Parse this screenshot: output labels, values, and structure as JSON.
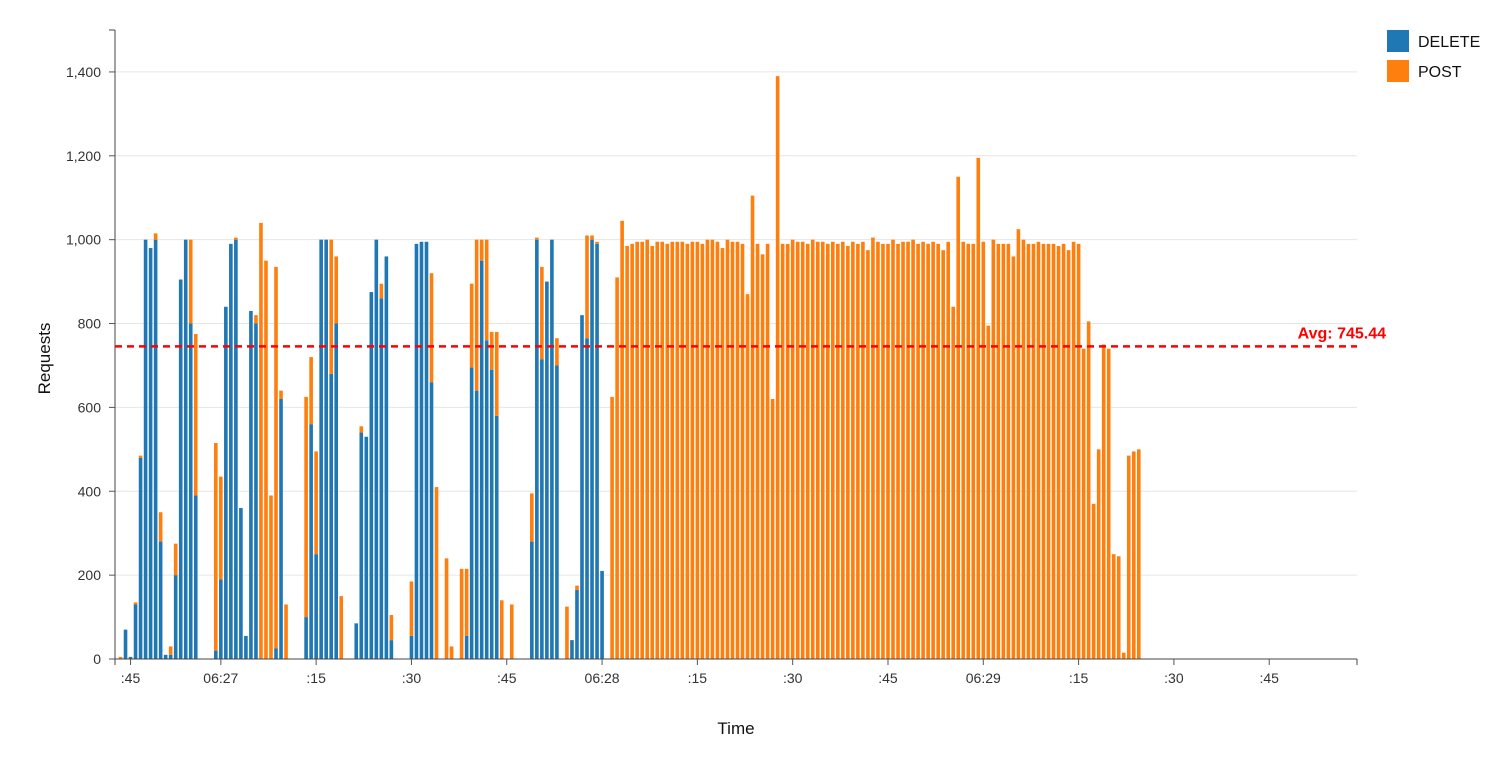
{
  "chart_data": {
    "type": "bar",
    "stacked": true,
    "xlabel": "Time",
    "ylabel": "Requests",
    "ylim": [
      0,
      1500
    ],
    "y_ticks": [
      0,
      200,
      400,
      600,
      800,
      1000,
      1200,
      1400
    ],
    "y_tick_labels": [
      "0",
      "200",
      "400",
      "600",
      "800",
      "1,000",
      "1,200",
      "1,400"
    ],
    "x_tick_labels": [
      ":45",
      "06:27",
      ":15",
      ":30",
      ":45",
      "06:28",
      ":15",
      ":30",
      ":45",
      "06:29",
      ":15",
      ":30",
      ":45"
    ],
    "x_tick_positions": [
      2,
      20,
      39,
      58,
      77,
      96,
      115,
      134,
      153,
      172,
      191,
      210,
      229
    ],
    "grid": "horizontal",
    "legend_position": "top-right",
    "colors": {
      "DELETE": "#1f77b4",
      "POST": "#ff7f0e",
      "average": "#ff0000"
    },
    "average": {
      "value": 745.44,
      "label": "Avg: 745.44"
    },
    "series": [
      {
        "name": "DELETE",
        "values": [
          0,
          70,
          5,
          130,
          480,
          1000,
          980,
          1000,
          280,
          10,
          10,
          200,
          905,
          1000,
          800,
          390,
          0,
          0,
          0,
          20,
          190,
          840,
          990,
          1000,
          360,
          55,
          830,
          800,
          0,
          0,
          0,
          25,
          620,
          0,
          0,
          0,
          0,
          100,
          560,
          250,
          1000,
          1000,
          680,
          800,
          0,
          0,
          0,
          85,
          540,
          530,
          875,
          1000,
          860,
          960,
          45,
          0,
          0,
          0,
          55,
          990,
          995,
          995,
          660,
          0,
          0,
          0,
          0,
          0,
          0,
          55,
          695,
          640,
          950,
          760,
          690,
          580,
          0,
          0,
          0,
          0,
          0,
          0,
          280,
          1000,
          715,
          900,
          1000,
          700,
          0,
          0,
          45,
          165,
          820,
          765,
          1000,
          990,
          210,
          0,
          0,
          0,
          0,
          0,
          0,
          0,
          0,
          0,
          0,
          0,
          0,
          0,
          0,
          0,
          0,
          0,
          0,
          0,
          0,
          0,
          0,
          0,
          0,
          0,
          0,
          0,
          0,
          0,
          0,
          0,
          0,
          0,
          0,
          0,
          0,
          0,
          0,
          0,
          0,
          0,
          0,
          0,
          0,
          0,
          0,
          0,
          0,
          0,
          0,
          0,
          0,
          0,
          0,
          0,
          0,
          0,
          0,
          0,
          0,
          0,
          0,
          0,
          0,
          0,
          0,
          0,
          0,
          0,
          0,
          0,
          0,
          0,
          0,
          0,
          0,
          0,
          0,
          0,
          0,
          0,
          0,
          0,
          0,
          0,
          0,
          0,
          0,
          0,
          0,
          0,
          0,
          0,
          0,
          0,
          0,
          0,
          0,
          0,
          0,
          0,
          0,
          0,
          0,
          0,
          0,
          0,
          0,
          0,
          0,
          0,
          0,
          0,
          0,
          0,
          0,
          0,
          0,
          0,
          0,
          0,
          0,
          0,
          0,
          0,
          0,
          0,
          0,
          0,
          0,
          0,
          0,
          0,
          0,
          0,
          0,
          0,
          0,
          0,
          0,
          0,
          0,
          0,
          0,
          0,
          0,
          0,
          0,
          0,
          0
        ]
      },
      {
        "name": "POST",
        "values": [
          5,
          0,
          0,
          5,
          5,
          0,
          0,
          15,
          70,
          0,
          20,
          75,
          0,
          0,
          200,
          385,
          0,
          0,
          0,
          495,
          245,
          0,
          0,
          5,
          0,
          0,
          0,
          20,
          1040,
          950,
          390,
          910,
          20,
          130,
          0,
          0,
          0,
          525,
          160,
          245,
          0,
          0,
          320,
          160,
          150,
          0,
          0,
          0,
          15,
          0,
          0,
          0,
          35,
          0,
          60,
          0,
          0,
          0,
          130,
          0,
          0,
          0,
          260,
          410,
          0,
          240,
          30,
          0,
          215,
          160,
          200,
          360,
          50,
          240,
          90,
          200,
          140,
          0,
          130,
          0,
          0,
          0,
          115,
          5,
          220,
          0,
          0,
          65,
          0,
          125,
          0,
          10,
          0,
          245,
          10,
          5,
          0,
          0,
          625,
          910,
          1045,
          985,
          990,
          995,
          995,
          1000,
          985,
          995,
          995,
          990,
          995,
          995,
          995,
          990,
          995,
          995,
          990,
          1000,
          1000,
          995,
          980,
          1000,
          995,
          995,
          990,
          870,
          1105,
          990,
          965,
          990,
          620,
          1390,
          990,
          990,
          1000,
          995,
          995,
          990,
          1000,
          995,
          995,
          990,
          995,
          990,
          995,
          985,
          995,
          990,
          995,
          975,
          1005,
          995,
          990,
          990,
          1000,
          990,
          995,
          995,
          1000,
          990,
          995,
          990,
          995,
          990,
          975,
          995,
          840,
          1150,
          995,
          990,
          990,
          1195,
          995,
          795,
          1000,
          990,
          990,
          990,
          960,
          1025,
          1000,
          990,
          990,
          995,
          990,
          990,
          990,
          985,
          990,
          975,
          995,
          990,
          740,
          805,
          370,
          500,
          750,
          740,
          250,
          245,
          15,
          485,
          495,
          500
        ]
      }
    ]
  }
}
